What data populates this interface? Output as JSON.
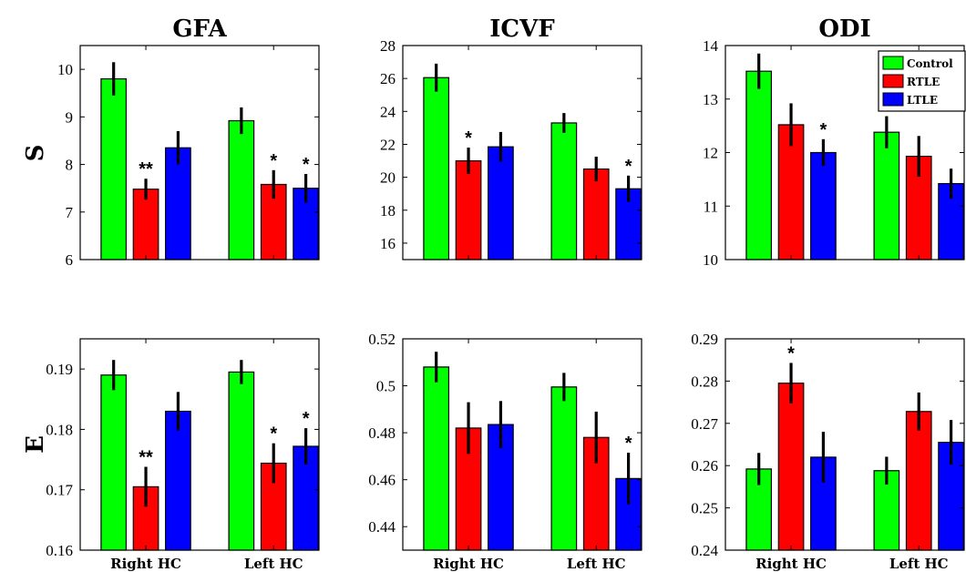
{
  "chart_data": {
    "type": "bar",
    "group_colors": {
      "Control": "#00ff00",
      "RTLE": "#ff0000",
      "LTLE": "#0000ff"
    },
    "legend": [
      "Control",
      "RTLE",
      "LTLE"
    ],
    "legend_location": "top-right of ODI S panel",
    "categories": [
      "Right HC",
      "Left HC"
    ],
    "column_titles": [
      "GFA",
      "ICVF",
      "ODI"
    ],
    "row_labels": [
      "S",
      "E"
    ],
    "panels": [
      {
        "title": "GFA",
        "row_label": "S",
        "ylim": [
          6,
          10.5
        ],
        "yticks": [
          {
            "v": 6,
            "t": "6"
          },
          {
            "v": 7,
            "t": "7"
          },
          {
            "v": 8,
            "t": "8"
          },
          {
            "v": 9,
            "t": "9"
          },
          {
            "v": 10,
            "t": "10"
          }
        ],
        "show_xticklabels": false,
        "series": [
          {
            "name": "Control",
            "values": [
              9.8,
              8.92
            ],
            "errors": [
              0.35,
              0.28
            ],
            "stars": [
              "",
              ""
            ]
          },
          {
            "name": "RTLE",
            "values": [
              7.48,
              7.58
            ],
            "errors": [
              0.22,
              0.3
            ],
            "stars": [
              "**",
              "*"
            ]
          },
          {
            "name": "LTLE",
            "values": [
              8.35,
              7.5
            ],
            "errors": [
              0.35,
              0.3
            ],
            "stars": [
              "",
              "*"
            ]
          }
        ]
      },
      {
        "title": "ICVF",
        "row_label": "",
        "ylim": [
          15,
          28
        ],
        "yticks": [
          {
            "v": 16,
            "t": "16"
          },
          {
            "v": 18,
            "t": "18"
          },
          {
            "v": 20,
            "t": "20"
          },
          {
            "v": 22,
            "t": "22"
          },
          {
            "v": 24,
            "t": "24"
          },
          {
            "v": 26,
            "t": "26"
          },
          {
            "v": 28,
            "t": "28"
          }
        ],
        "show_xticklabels": false,
        "series": [
          {
            "name": "Control",
            "values": [
              26.05,
              23.3
            ],
            "errors": [
              0.85,
              0.6
            ],
            "stars": [
              "",
              ""
            ]
          },
          {
            "name": "RTLE",
            "values": [
              21.0,
              20.5
            ],
            "errors": [
              0.8,
              0.75
            ],
            "stars": [
              "*",
              ""
            ]
          },
          {
            "name": "LTLE",
            "values": [
              21.85,
              19.3
            ],
            "errors": [
              0.9,
              0.8
            ],
            "stars": [
              "",
              "*"
            ]
          }
        ]
      },
      {
        "title": "ODI",
        "row_label": "",
        "ylim": [
          10,
          14
        ],
        "yticks": [
          {
            "v": 10,
            "t": "10"
          },
          {
            "v": 11,
            "t": "11"
          },
          {
            "v": 12,
            "t": "12"
          },
          {
            "v": 13,
            "t": "13"
          },
          {
            "v": 14,
            "t": "14"
          }
        ],
        "show_xticklabels": false,
        "series": [
          {
            "name": "Control",
            "values": [
              13.52,
              12.38
            ],
            "errors": [
              0.33,
              0.3
            ],
            "stars": [
              "",
              ""
            ]
          },
          {
            "name": "RTLE",
            "values": [
              12.52,
              11.93
            ],
            "errors": [
              0.4,
              0.38
            ],
            "stars": [
              "",
              ""
            ]
          },
          {
            "name": "LTLE",
            "values": [
              12.0,
              11.42
            ],
            "errors": [
              0.25,
              0.28
            ],
            "stars": [
              "*",
              ""
            ]
          }
        ]
      },
      {
        "title": "",
        "row_label": "E",
        "ylim": [
          0.16,
          0.195
        ],
        "yticks": [
          {
            "v": 0.16,
            "t": "0.16"
          },
          {
            "v": 0.17,
            "t": "0.17"
          },
          {
            "v": 0.18,
            "t": "0.18"
          },
          {
            "v": 0.19,
            "t": "0.19"
          }
        ],
        "show_xticklabels": true,
        "series": [
          {
            "name": "Control",
            "values": [
              0.189,
              0.1895
            ],
            "errors": [
              0.0025,
              0.002
            ],
            "stars": [
              "",
              ""
            ]
          },
          {
            "name": "RTLE",
            "values": [
              0.1705,
              0.1744
            ],
            "errors": [
              0.0033,
              0.0033
            ],
            "stars": [
              "**",
              "*"
            ]
          },
          {
            "name": "LTLE",
            "values": [
              0.183,
              0.1772
            ],
            "errors": [
              0.0032,
              0.003
            ],
            "stars": [
              "",
              "*"
            ]
          }
        ]
      },
      {
        "title": "",
        "row_label": "",
        "ylim": [
          0.43,
          0.52
        ],
        "yticks": [
          {
            "v": 0.44,
            "t": "0.44"
          },
          {
            "v": 0.46,
            "t": "0.46"
          },
          {
            "v": 0.48,
            "t": "0.48"
          },
          {
            "v": 0.5,
            "t": "0.5"
          },
          {
            "v": 0.52,
            "t": "0.52"
          }
        ],
        "show_xticklabels": true,
        "series": [
          {
            "name": "Control",
            "values": [
              0.508,
              0.4995
            ],
            "errors": [
              0.0065,
              0.006
            ],
            "stars": [
              "",
              ""
            ]
          },
          {
            "name": "RTLE",
            "values": [
              0.482,
              0.478
            ],
            "errors": [
              0.011,
              0.011
            ],
            "stars": [
              "",
              ""
            ]
          },
          {
            "name": "LTLE",
            "values": [
              0.4835,
              0.4605
            ],
            "errors": [
              0.01,
              0.011
            ],
            "stars": [
              "",
              "*"
            ]
          }
        ]
      },
      {
        "title": "",
        "row_label": "",
        "ylim": [
          0.24,
          0.29
        ],
        "yticks": [
          {
            "v": 0.24,
            "t": "0.24"
          },
          {
            "v": 0.25,
            "t": "0.25"
          },
          {
            "v": 0.26,
            "t": "0.26"
          },
          {
            "v": 0.27,
            "t": "0.27"
          },
          {
            "v": 0.28,
            "t": "0.28"
          },
          {
            "v": 0.29,
            "t": "0.29"
          }
        ],
        "show_xticklabels": true,
        "series": [
          {
            "name": "Control",
            "values": [
              0.2592,
              0.2588
            ],
            "errors": [
              0.0038,
              0.0033
            ],
            "stars": [
              "",
              ""
            ]
          },
          {
            "name": "RTLE",
            "values": [
              0.2795,
              0.2728
            ],
            "errors": [
              0.0048,
              0.0045
            ],
            "stars": [
              "*",
              ""
            ]
          },
          {
            "name": "LTLE",
            "values": [
              0.262,
              0.2655
            ],
            "errors": [
              0.006,
              0.0053
            ],
            "stars": [
              "",
              ""
            ]
          }
        ]
      }
    ]
  }
}
